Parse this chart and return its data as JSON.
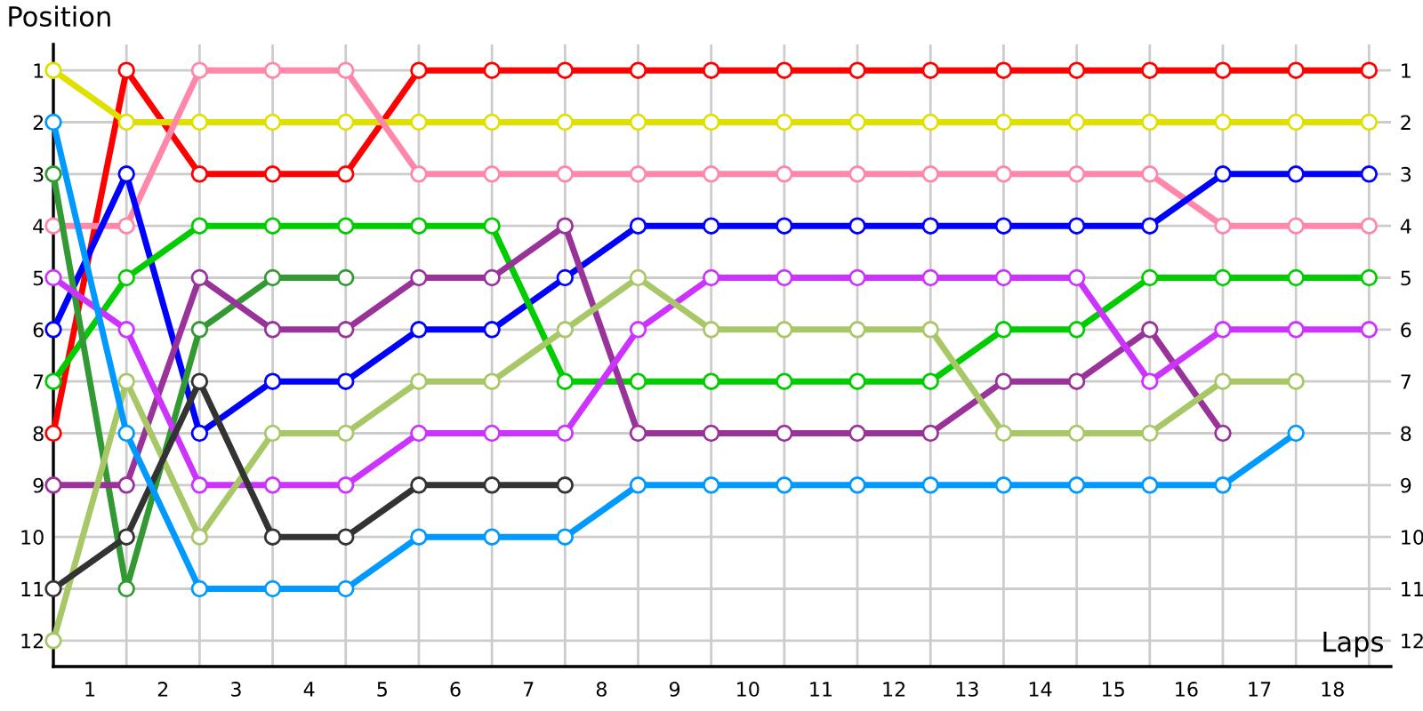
{
  "chart_data": {
    "type": "line",
    "xlabel": "Laps",
    "ylabel": "Position",
    "x": [
      0,
      1,
      2,
      3,
      4,
      5,
      6,
      7,
      8,
      9,
      10,
      11,
      12,
      13,
      14,
      15,
      16,
      17,
      18
    ],
    "series": [
      {
        "color": "#ff0000",
        "values": [
          8,
          1,
          3,
          3,
          3,
          1,
          1,
          1,
          1,
          1,
          1,
          1,
          1,
          1,
          1,
          1,
          1,
          1,
          1
        ]
      },
      {
        "color": "#e0e000",
        "values": [
          1,
          2,
          2,
          2,
          2,
          2,
          2,
          2,
          2,
          2,
          2,
          2,
          2,
          2,
          2,
          2,
          2,
          2,
          2
        ]
      },
      {
        "color": "#ff88aa",
        "values": [
          4,
          4,
          1,
          1,
          1,
          3,
          3,
          3,
          3,
          3,
          3,
          3,
          3,
          3,
          3,
          3,
          4,
          4,
          4
        ]
      },
      {
        "color": "#0000ff",
        "values": [
          6,
          3,
          8,
          7,
          7,
          6,
          6,
          5,
          4,
          4,
          4,
          4,
          4,
          4,
          4,
          4,
          3,
          3,
          3
        ]
      },
      {
        "color": "#00cc00",
        "values": [
          7,
          5,
          4,
          4,
          4,
          4,
          4,
          7,
          7,
          7,
          7,
          7,
          7,
          6,
          6,
          5,
          5,
          5,
          5
        ]
      },
      {
        "color": "#339933",
        "values": [
          3,
          11,
          6,
          5,
          5,
          null,
          null,
          null,
          null,
          null,
          null,
          null,
          null,
          null,
          null,
          null,
          null,
          null,
          null
        ]
      },
      {
        "color": "#993399",
        "values": [
          9,
          9,
          5,
          6,
          6,
          5,
          5,
          4,
          8,
          8,
          8,
          8,
          8,
          7,
          7,
          6,
          8,
          null,
          null
        ]
      },
      {
        "color": "#cc33ff",
        "values": [
          5,
          6,
          9,
          9,
          9,
          8,
          8,
          8,
          6,
          5,
          5,
          5,
          5,
          5,
          5,
          7,
          6,
          6,
          6
        ]
      },
      {
        "color": "#a8c868",
        "values": [
          12,
          7,
          10,
          8,
          8,
          7,
          7,
          6,
          5,
          6,
          6,
          6,
          6,
          8,
          8,
          8,
          7,
          7,
          null
        ]
      },
      {
        "color": "#333333",
        "values": [
          11,
          10,
          7,
          10,
          10,
          9,
          9,
          9,
          null,
          null,
          null,
          null,
          null,
          null,
          null,
          null,
          null,
          null,
          null
        ]
      },
      {
        "color": "#0099ff",
        "values": [
          2,
          8,
          11,
          11,
          11,
          10,
          10,
          10,
          9,
          9,
          9,
          9,
          9,
          9,
          9,
          9,
          9,
          8,
          null
        ]
      }
    ],
    "xlim": [
      0,
      18.3
    ],
    "ylim": [
      12.5,
      0.5
    ],
    "xticks": [
      {
        "value": 0,
        "label": null
      },
      {
        "value": 0.5,
        "label": "1"
      },
      {
        "value": 1,
        "label": null
      },
      {
        "value": 1.5,
        "label": "2"
      },
      {
        "value": 2,
        "label": null
      },
      {
        "value": 2.5,
        "label": "3"
      },
      {
        "value": 3,
        "label": null
      },
      {
        "value": 3.5,
        "label": "4"
      },
      {
        "value": 4,
        "label": null
      },
      {
        "value": 4.5,
        "label": "5"
      },
      {
        "value": 5,
        "label": null
      },
      {
        "value": 5.5,
        "label": "6"
      },
      {
        "value": 6,
        "label": null
      },
      {
        "value": 6.5,
        "label": "7"
      },
      {
        "value": 7,
        "label": null
      },
      {
        "value": 7.5,
        "label": "8"
      },
      {
        "value": 8,
        "label": null
      },
      {
        "value": 8.5,
        "label": "9"
      },
      {
        "value": 9,
        "label": null
      },
      {
        "value": 9.5,
        "label": "10"
      },
      {
        "value": 10,
        "label": null
      },
      {
        "value": 10.5,
        "label": "11"
      },
      {
        "value": 11,
        "label": null
      },
      {
        "value": 11.5,
        "label": "12"
      },
      {
        "value": 12,
        "label": null
      },
      {
        "value": 12.5,
        "label": "13"
      },
      {
        "value": 13,
        "label": null
      },
      {
        "value": 13.5,
        "label": "14"
      },
      {
        "value": 14,
        "label": null
      },
      {
        "value": 14.5,
        "label": "15"
      },
      {
        "value": 15,
        "label": null
      },
      {
        "value": 15.5,
        "label": "16"
      },
      {
        "value": 16,
        "label": null
      },
      {
        "value": 16.5,
        "label": "17"
      },
      {
        "value": 17,
        "label": null
      },
      {
        "value": 17.5,
        "label": "18"
      },
      {
        "value": 18,
        "label": null
      }
    ],
    "yticks": [
      1,
      2,
      3,
      4,
      5,
      6,
      7,
      8,
      9,
      10,
      11,
      12
    ],
    "y2lim": [
      12.5,
      0.5
    ],
    "y2ticks": [
      1,
      2,
      3,
      4,
      5,
      6,
      7,
      8,
      9,
      10,
      11,
      12
    ],
    "grid": true,
    "marker": "circle",
    "line_style": "solid"
  }
}
